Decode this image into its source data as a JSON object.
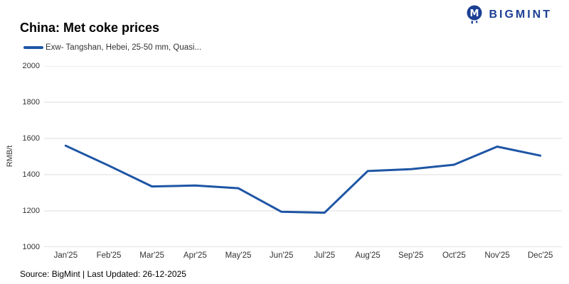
{
  "header": {
    "title": "China: Met coke prices",
    "logo_text": "BIGMINT"
  },
  "legend": {
    "label": "Exw- Tangshan, Hebei, 25-50 mm, Quasi..."
  },
  "footer": {
    "source_text": "Source: BigMint | Last Updated: 26-12-2025"
  },
  "colors": {
    "series_line": "#1e55a5",
    "logo": "#1c3f94",
    "gridline": "#dedede",
    "axis_line": "#c6c6c6",
    "tick_text": "#333333"
  },
  "chart_data": {
    "type": "line",
    "title": "China: Met coke prices",
    "categories": [
      "Jan'25",
      "Feb'25",
      "Mar'25",
      "Apr'25",
      "May'25",
      "Jun'25",
      "Jul'25",
      "Aug'25",
      "Sep'25",
      "Oct'25",
      "Nov'25",
      "Dec'25"
    ],
    "series": [
      {
        "name": "Exw- Tangshan, Hebei, 25-50 mm, Quasi...",
        "values": [
          1560,
          1450,
          1335,
          1340,
          1325,
          1195,
          1190,
          1420,
          1430,
          1455,
          1555,
          1505
        ]
      }
    ],
    "xlabel": "",
    "ylabel": "RMB/t",
    "ylim": [
      1000,
      2000
    ],
    "yticks": [
      1000,
      1200,
      1400,
      1600,
      1800,
      2000
    ],
    "grid": true,
    "legend_position": "top-left",
    "source": "Source: BigMint | Last Updated: 26-12-2025"
  }
}
